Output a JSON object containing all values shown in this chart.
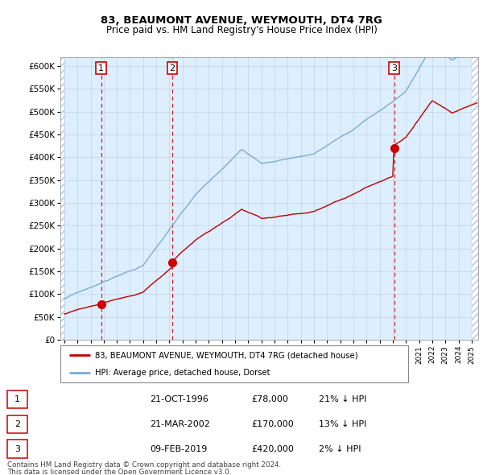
{
  "title1": "83, BEAUMONT AVENUE, WEYMOUTH, DT4 7RG",
  "title2": "Price paid vs. HM Land Registry's House Price Index (HPI)",
  "ylim": [
    0,
    620000
  ],
  "yticks": [
    0,
    50000,
    100000,
    150000,
    200000,
    250000,
    300000,
    350000,
    400000,
    450000,
    500000,
    550000,
    600000
  ],
  "ytick_labels": [
    "£0",
    "£50K",
    "£100K",
    "£150K",
    "£200K",
    "£250K",
    "£300K",
    "£350K",
    "£400K",
    "£450K",
    "£500K",
    "£550K",
    "£600K"
  ],
  "xlim_start": 1993.7,
  "xlim_end": 2025.5,
  "sale_dates": [
    1996.81,
    2002.22,
    2019.11
  ],
  "sale_prices": [
    78000,
    170000,
    420000
  ],
  "sale_labels": [
    "1",
    "2",
    "3"
  ],
  "legend_line1": "83, BEAUMONT AVENUE, WEYMOUTH, DT4 7RG (detached house)",
  "legend_line2": "HPI: Average price, detached house, Dorset",
  "table_rows": [
    [
      "1",
      "21-OCT-1996",
      "£78,000",
      "21% ↓ HPI"
    ],
    [
      "2",
      "21-MAR-2002",
      "£170,000",
      "13% ↓ HPI"
    ],
    [
      "3",
      "09-FEB-2019",
      "£420,000",
      "2% ↓ HPI"
    ]
  ],
  "footnote1": "Contains HM Land Registry data © Crown copyright and database right 2024.",
  "footnote2": "This data is licensed under the Open Government Licence v3.0.",
  "hpi_color": "#7aadd4",
  "sale_line_color": "#bb0000",
  "marker_color": "#cc0000",
  "vline_color": "#cc0000",
  "grid_color": "#c8d8e8",
  "plot_bg": "#ddeeff",
  "hatch_color": "#b0c8d8"
}
